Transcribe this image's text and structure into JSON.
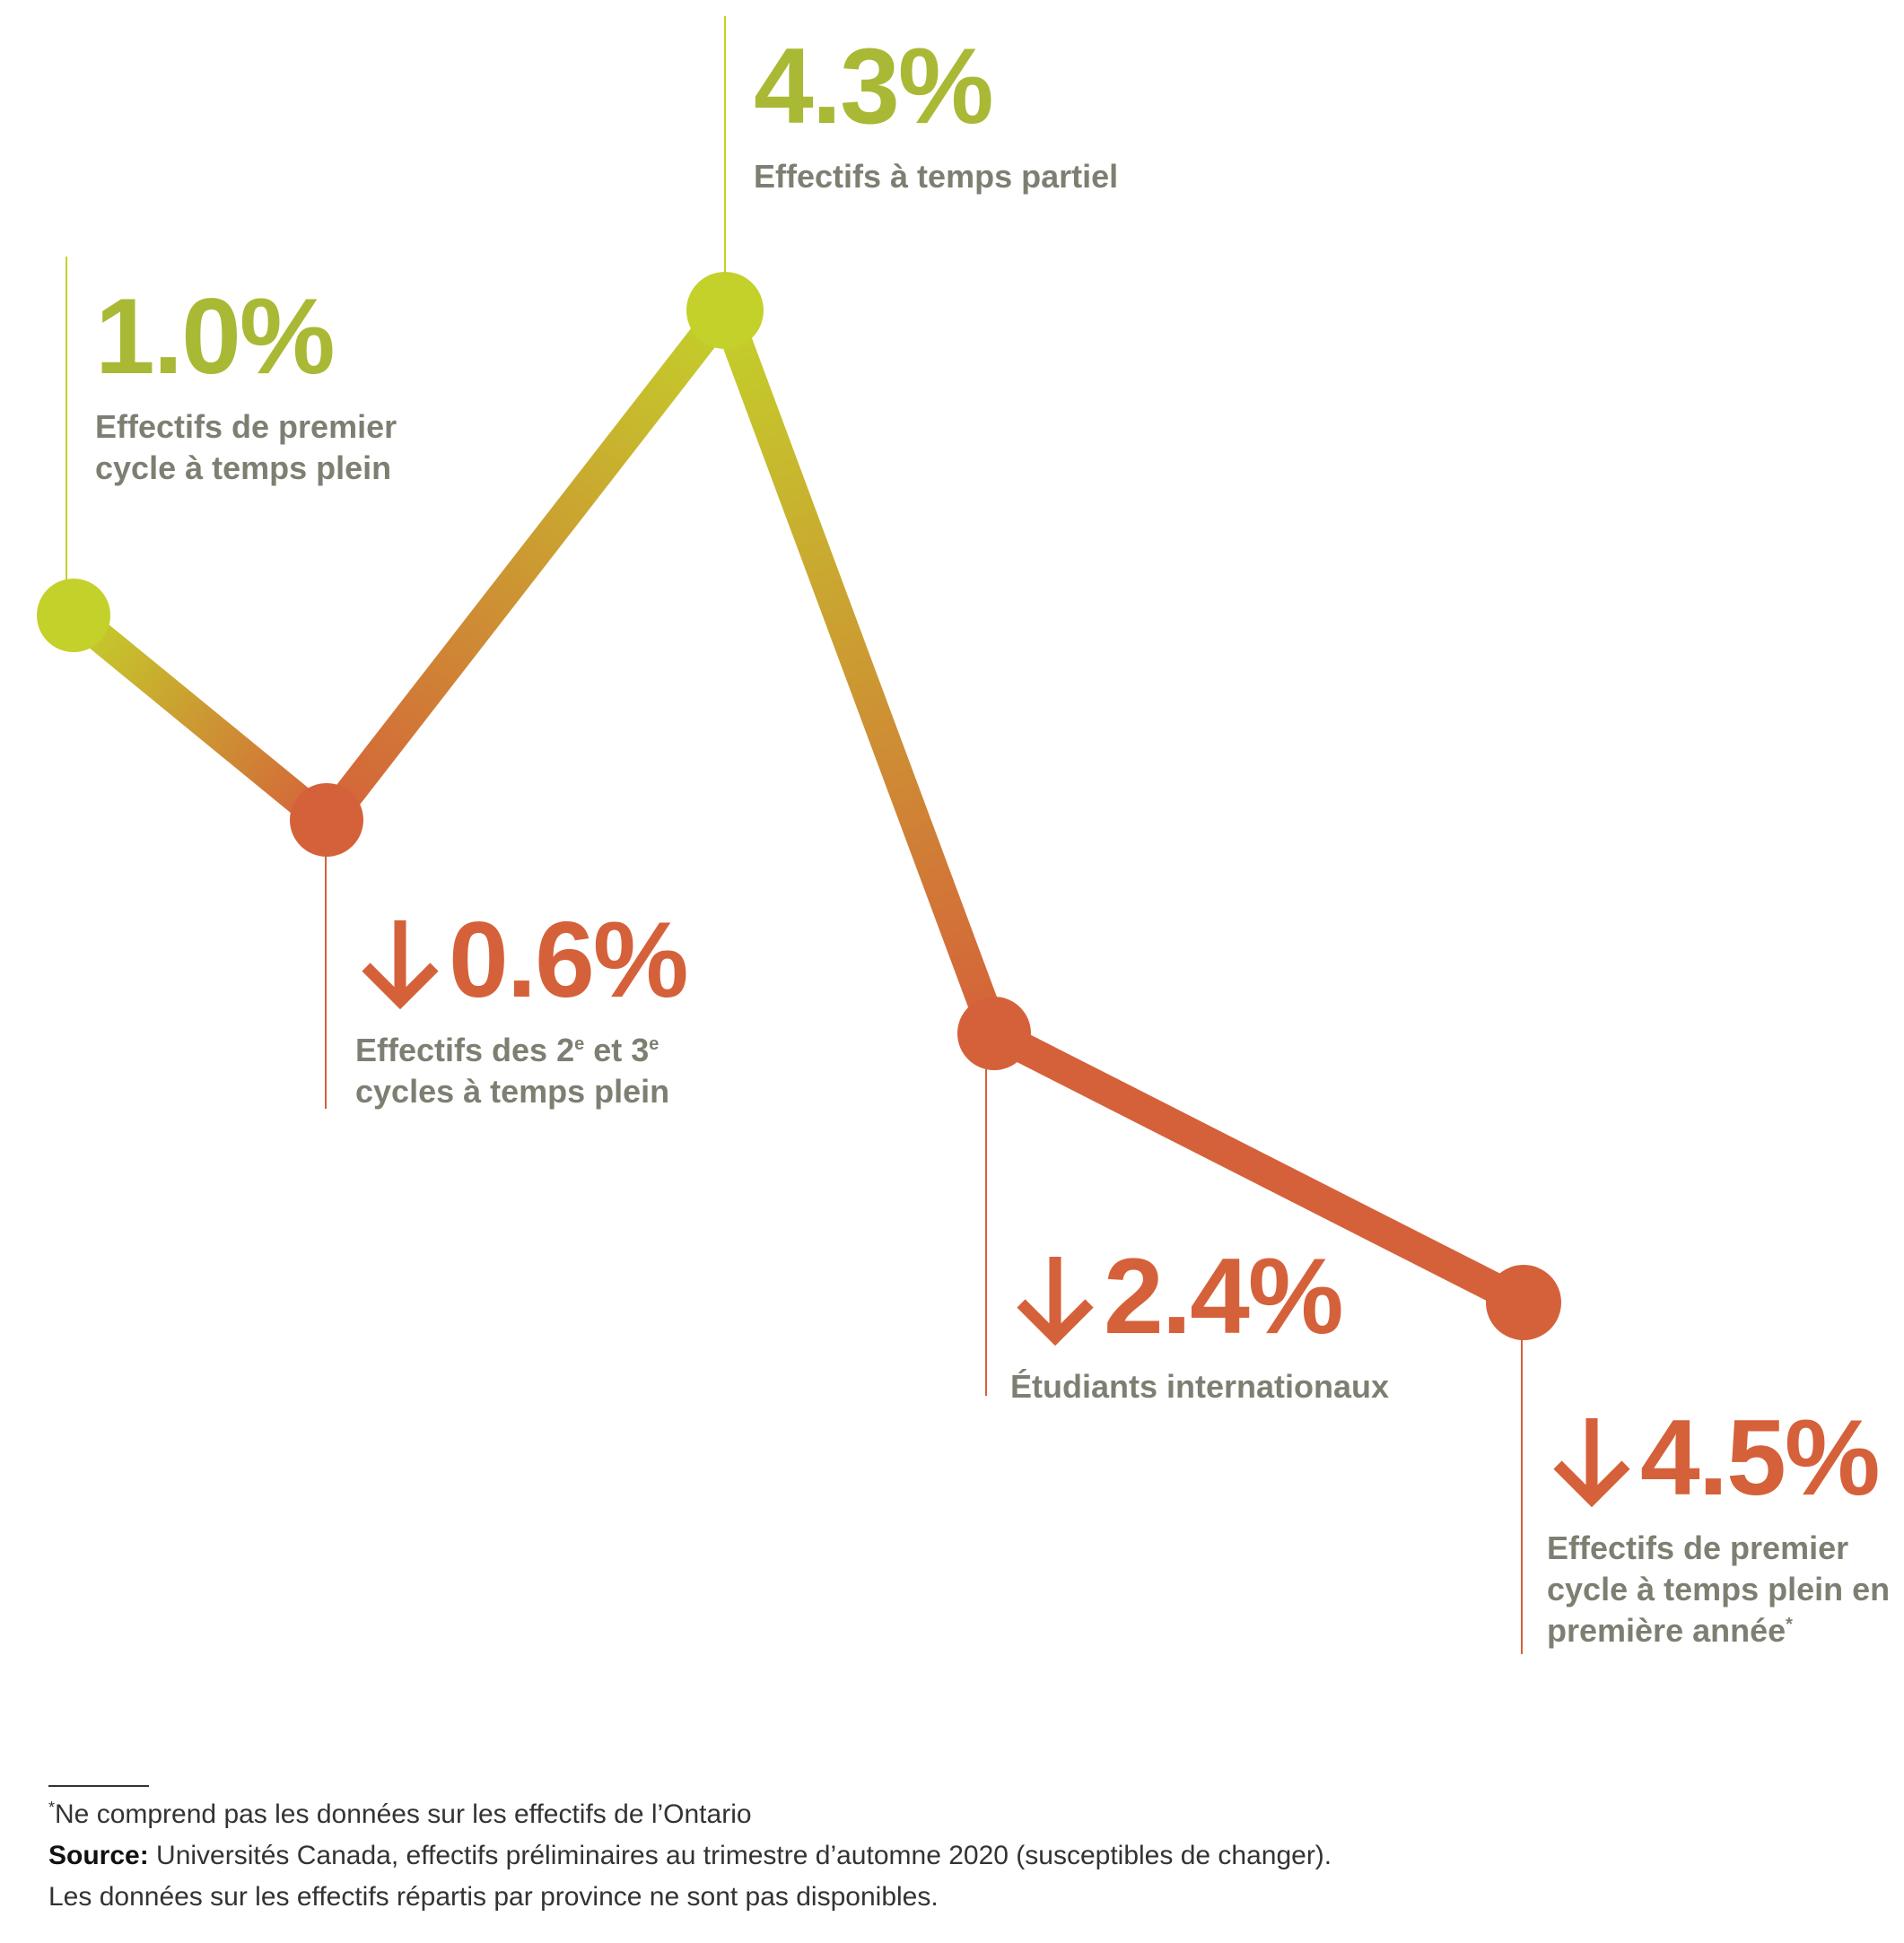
{
  "colors": {
    "up": "#c3d12a",
    "down": "#d5613a",
    "up_text": "#a9b935",
    "label_text": "#7e7f72"
  },
  "chart_data": {
    "type": "line",
    "points": [
      {
        "value": "1.0%",
        "direction": "up",
        "label_lines": [
          "Effectifs de premier",
          "cycle à temps plein"
        ]
      },
      {
        "value": "0.6%",
        "direction": "down",
        "label_lines": [
          "Effectifs des 2",
          "cycles à temps plein"
        ]
      },
      {
        "value": "4.3%",
        "direction": "up",
        "label_lines": [
          "Effectifs à temps partiel"
        ]
      },
      {
        "value": "2.4%",
        "direction": "down",
        "label_lines": [
          "Étudiants internationaux"
        ]
      },
      {
        "value": "4.5%",
        "direction": "down",
        "label_lines": [
          "Effectifs de premier",
          "cycle à temps plein en",
          "première année"
        ]
      }
    ],
    "label_extras": {
      "p1_sup1": "e",
      "p1_mid": " et 3",
      "p1_sup2": "e",
      "p4_sup": "*"
    }
  },
  "footer": {
    "note_marker": "*",
    "note": "Ne comprend pas les données sur les effectifs de l’Ontario",
    "source_label": "Source:",
    "source_text": " Universités Canada, effectifs préliminaires au trimestre d’automne 2020 (susceptibles de changer).",
    "line3": "Les données sur les effectifs répartis par province ne sont pas disponibles."
  }
}
